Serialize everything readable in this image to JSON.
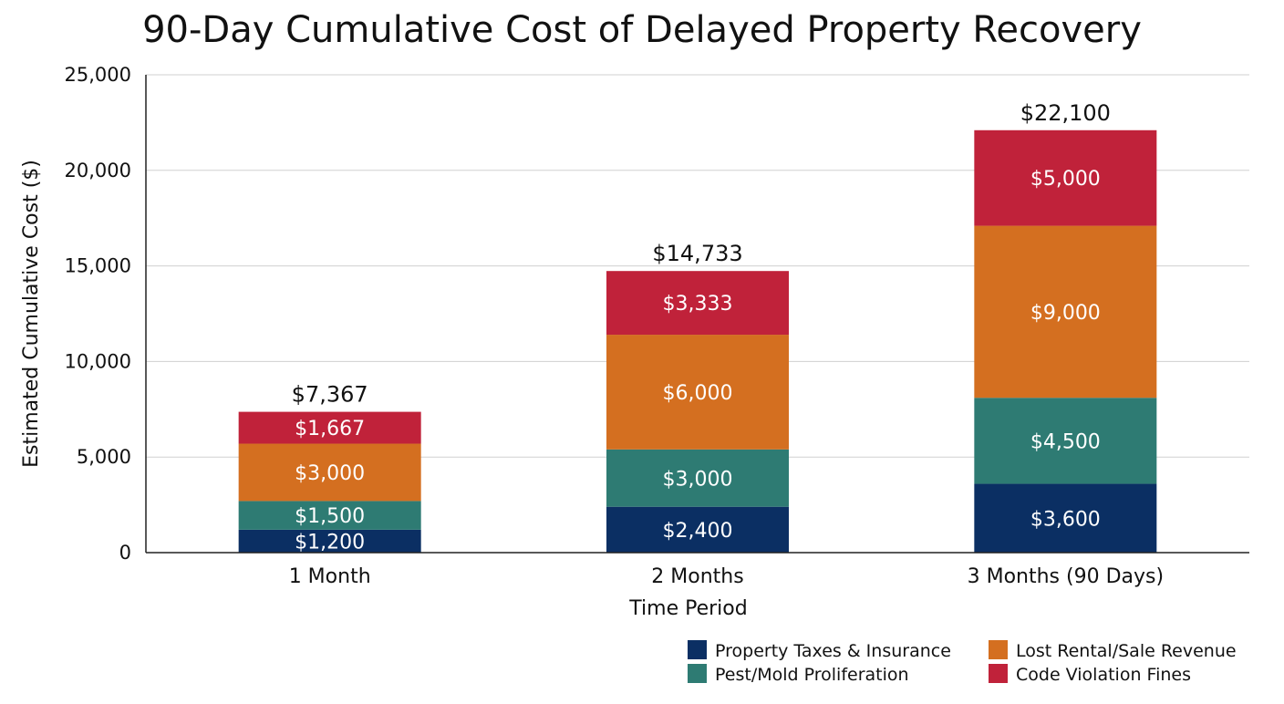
{
  "chart_data": {
    "type": "bar",
    "stacked": true,
    "title": "90-Day Cumulative Cost of Delayed Property Recovery",
    "xlabel": "Time Period",
    "ylabel": "Estimated Cumulative Cost ($)",
    "ylim": [
      0,
      25000
    ],
    "yticks": [
      0,
      5000,
      10000,
      15000,
      20000,
      25000
    ],
    "ytick_labels": [
      "0",
      "5,000",
      "10,000",
      "15,000",
      "20,000",
      "25,000"
    ],
    "grid": true,
    "legend_position": "bottom-right",
    "categories": [
      "1 Month",
      "2 Months",
      "3 Months (90 Days)"
    ],
    "series": [
      {
        "name": "Property Taxes & Insurance",
        "color": "#0b2f63",
        "values": [
          1200,
          2400,
          3600
        ],
        "labels": [
          "$1,200",
          "$2,400",
          "$3,600"
        ]
      },
      {
        "name": "Pest/Mold Proliferation",
        "color": "#2e7b73",
        "values": [
          1500,
          3000,
          4500
        ],
        "labels": [
          "$1,500",
          "$3,000",
          "$4,500"
        ]
      },
      {
        "name": "Lost Rental/Sale Revenue",
        "color": "#d46f20",
        "values": [
          3000,
          6000,
          9000
        ],
        "labels": [
          "$3,000",
          "$6,000",
          "$9,000"
        ]
      },
      {
        "name": "Code Violation Fines",
        "color": "#c0223a",
        "values": [
          1667,
          3333,
          5000
        ],
        "labels": [
          "$1,667",
          "$3,333",
          "$5,000"
        ]
      }
    ],
    "totals": [
      7367,
      14733,
      22100
    ],
    "total_labels": [
      "$7,367",
      "$14,733",
      "$22,100"
    ]
  }
}
